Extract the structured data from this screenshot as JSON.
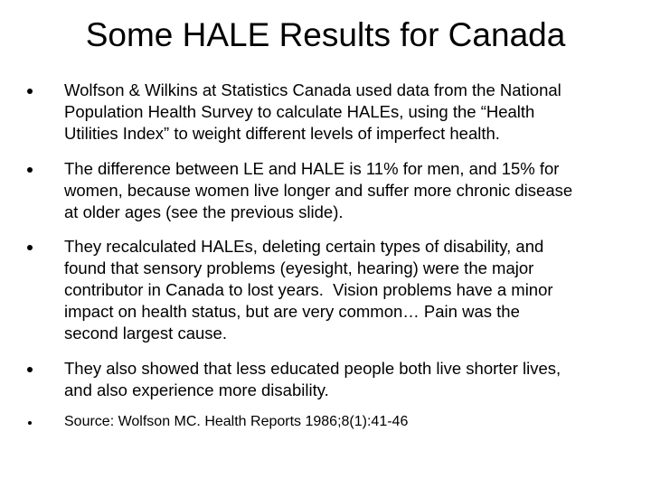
{
  "slide": {
    "title": "Some HALE Results for Canada",
    "bullets": [
      {
        "lines": [
          "Wolfson & Wilkins at Statistics Canada used data from the National",
          "Population Health Survey to calculate HALEs, using the “Health",
          "Utilities Index” to weight different levels of imperfect health."
        ]
      },
      {
        "lines": [
          "The difference between LE and HALE is 11% for men, and 15% for",
          "women, because women live longer and suffer more chronic disease",
          "at older ages (see the previous slide)."
        ]
      },
      {
        "lines": [
          "They recalculated HALEs, deleting certain types of disability, and",
          "found that sensory problems (eyesight, hearing) were the major",
          "contributor in Canada to lost years.  Vision problems have a minor",
          "impact on health status, but are very common… Pain was the",
          "second largest cause."
        ]
      },
      {
        "lines": [
          "They also showed that less educated people both live shorter lives,",
          "and also experience more disability."
        ]
      },
      {
        "lines": [
          "Source: Wolfson MC. Health Reports 1986;8(1):41-46"
        ]
      }
    ]
  }
}
